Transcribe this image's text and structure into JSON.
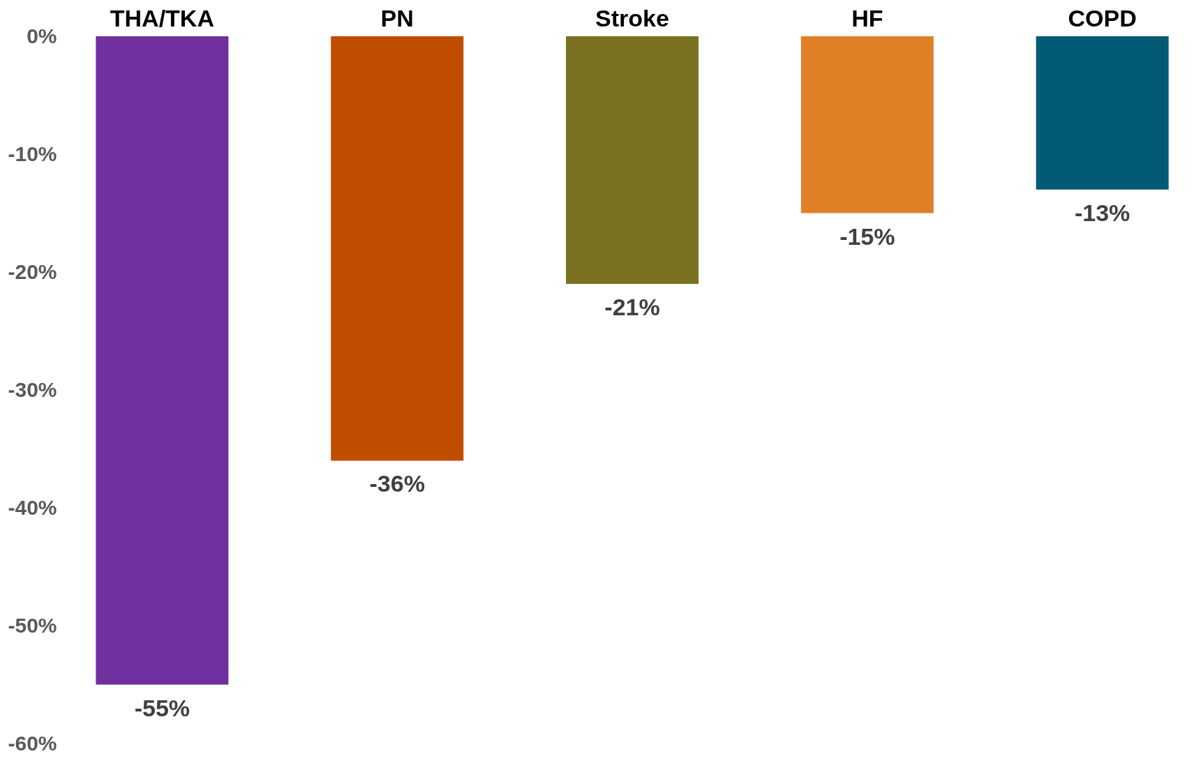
{
  "chart_data": {
    "type": "bar",
    "categories": [
      "THA/TKA",
      "PN",
      "Stroke",
      "HF",
      "COPD"
    ],
    "values": [
      -55,
      -36,
      -21,
      -15,
      -13
    ],
    "colors": [
      "#7030a0",
      "#bf4e00",
      "#7a7220",
      "#e08026",
      "#025a74"
    ],
    "value_labels": [
      "-55%",
      "-36%",
      "-21%",
      "-15%",
      "-13%"
    ],
    "ylim": [
      -60,
      0
    ],
    "yticks": [
      {
        "value": 0,
        "label": "0%"
      },
      {
        "value": -10,
        "label": "-10%"
      },
      {
        "value": -20,
        "label": "-20%"
      },
      {
        "value": -30,
        "label": "-30%"
      },
      {
        "value": -40,
        "label": "-40%"
      },
      {
        "value": -50,
        "label": "-50%"
      },
      {
        "value": -60,
        "label": "-60%"
      }
    ],
    "grid": false,
    "legend": false
  }
}
